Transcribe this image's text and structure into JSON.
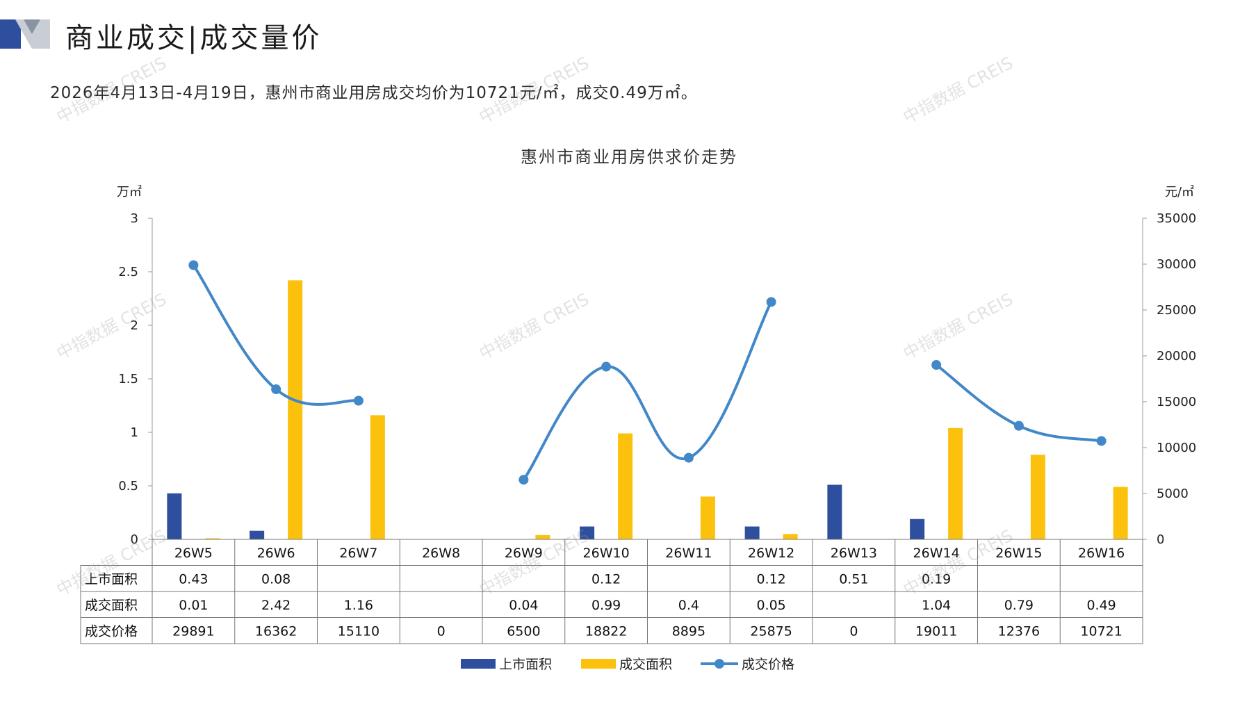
{
  "header": {
    "title": "商业成交|成交量价",
    "summary": "2026年4月13日-4月19日，惠州市商业用房成交均价为10721元/㎡，成交0.49万㎡。"
  },
  "watermark": "中指数据 CREIS",
  "colors": {
    "supply": "#2e4f9e",
    "deal_area": "#fcc10c",
    "deal_price": "#4287c8",
    "accent_dark": "#2e4f9e",
    "accent_gray": "#c9cdd4"
  },
  "chart_data": {
    "type": "bar+line",
    "title": "惠州市商业用房供求价走势",
    "y_left_unit": "万㎡",
    "y_right_unit": "元/㎡",
    "y_left_range": [
      0,
      3
    ],
    "y_left_ticks": [
      "0",
      "0.5",
      "1",
      "1.5",
      "2",
      "2.5",
      "3"
    ],
    "y_right_range": [
      0,
      35000
    ],
    "y_right_ticks": [
      "0",
      "5000",
      "10000",
      "15000",
      "20000",
      "25000",
      "30000",
      "35000"
    ],
    "categories": [
      "26W5",
      "26W6",
      "26W7",
      "26W8",
      "26W9",
      "26W10",
      "26W11",
      "26W12",
      "26W13",
      "26W14",
      "26W15",
      "26W16"
    ],
    "series": [
      {
        "name": "上市面积",
        "type": "bar",
        "axis": "left",
        "values": [
          0.43,
          0.08,
          null,
          null,
          null,
          0.12,
          null,
          0.12,
          0.51,
          0.19,
          null,
          null
        ],
        "labels": [
          "0.43",
          "0.08",
          "",
          "",
          "",
          "0.12",
          "",
          "0.12",
          "0.51",
          "0.19",
          "",
          ""
        ]
      },
      {
        "name": "成交面积",
        "type": "bar",
        "axis": "left",
        "values": [
          0.01,
          2.42,
          1.16,
          null,
          0.04,
          0.99,
          0.4,
          0.05,
          null,
          1.04,
          0.79,
          0.49
        ],
        "labels": [
          "0.01",
          "2.42",
          "1.16",
          "",
          "0.04",
          "0.99",
          "0.4",
          "0.05",
          "",
          "1.04",
          "0.79",
          "0.49"
        ]
      },
      {
        "name": "成交价格",
        "type": "line",
        "axis": "right",
        "values": [
          29891,
          16362,
          15110,
          0,
          6500,
          18822,
          8895,
          25875,
          0,
          19011,
          12376,
          10721
        ],
        "labels": [
          "29891",
          "16362",
          "15110",
          "0",
          "6500",
          "18822",
          "8895",
          "25875",
          "0",
          "19011",
          "12376",
          "10721"
        ]
      }
    ],
    "legend": [
      "上市面积",
      "成交面积",
      "成交价格"
    ],
    "legend_position": "bottom"
  }
}
